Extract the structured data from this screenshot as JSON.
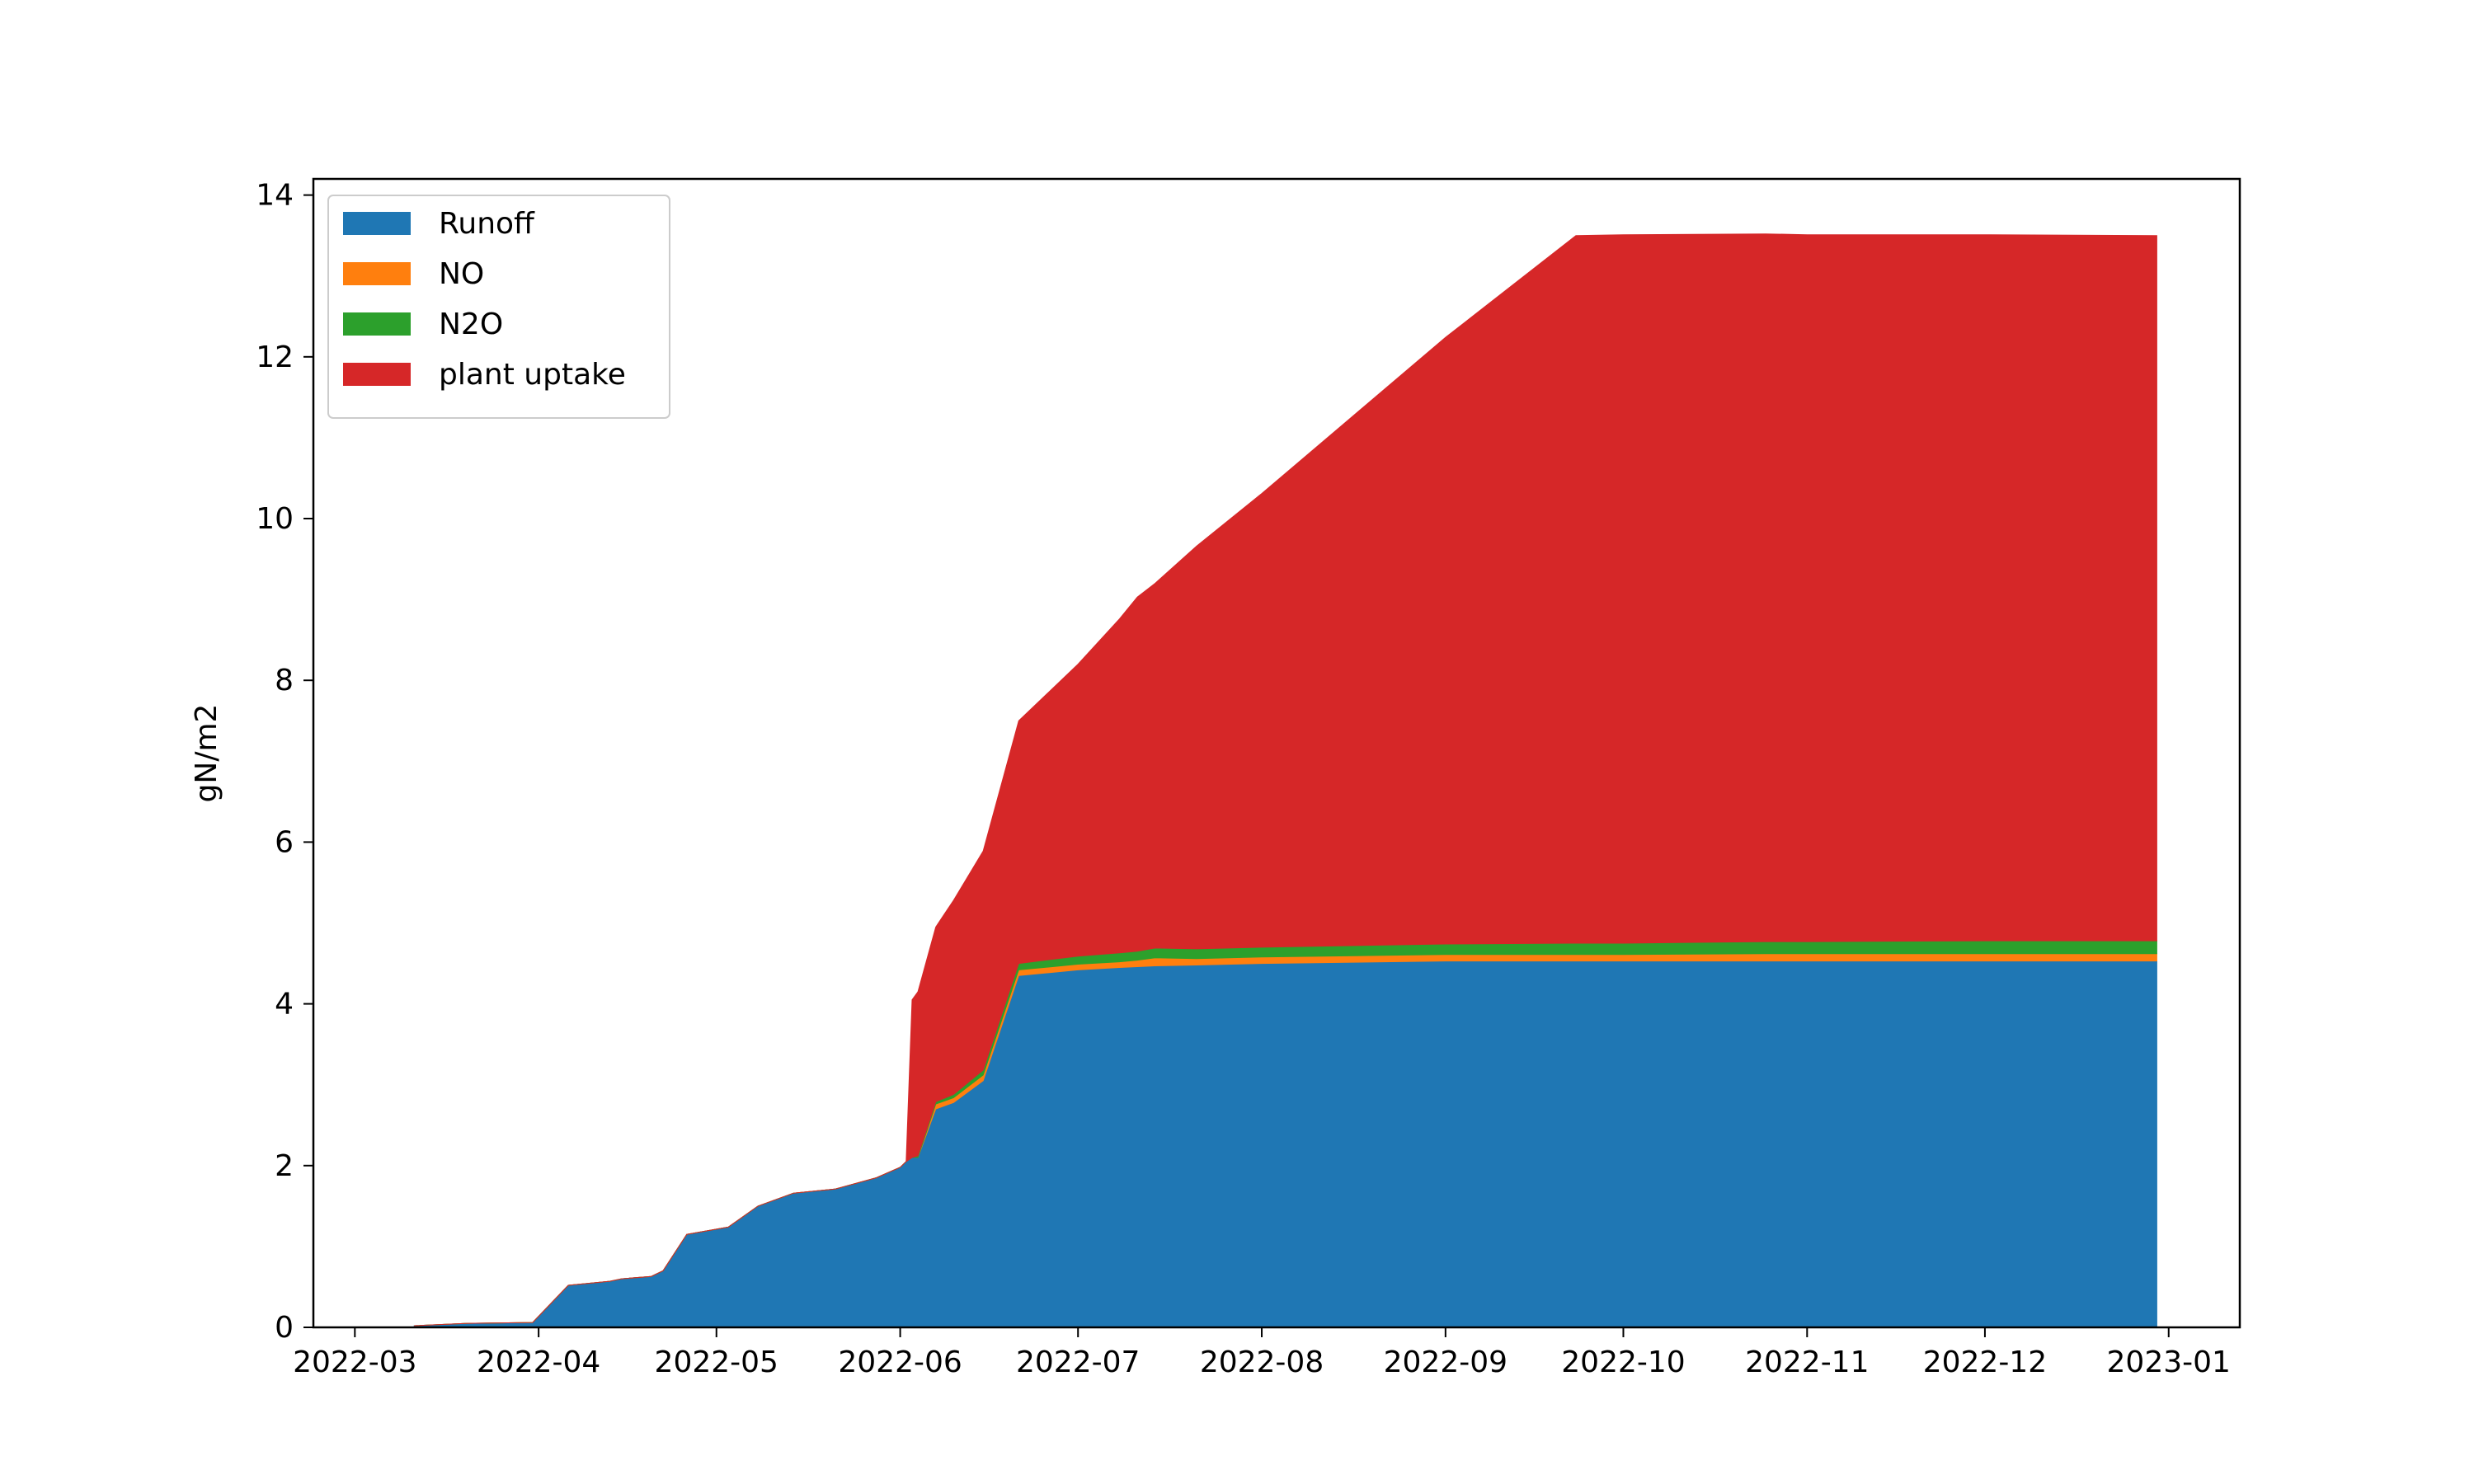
{
  "chart_data": {
    "type": "area",
    "stacked": true,
    "title": "",
    "xlabel": "",
    "ylabel": "gN/m2",
    "xlim": [
      "2022-02-22",
      "2023-01-13"
    ],
    "ylim": [
      0,
      14.2
    ],
    "x_ticks": [
      "2022-03",
      "2022-04",
      "2022-05",
      "2022-06",
      "2022-07",
      "2022-08",
      "2022-09",
      "2022-10",
      "2022-11",
      "2022-12",
      "2023-01"
    ],
    "y_ticks": [
      0,
      2,
      4,
      6,
      8,
      10,
      12,
      14
    ],
    "grid": false,
    "legend_position": "top-left",
    "x": [
      "2022-03-11",
      "2022-03-20",
      "2022-03-31",
      "2022-04-06",
      "2022-04-13",
      "2022-04-15",
      "2022-04-20",
      "2022-04-22",
      "2022-04-26",
      "2022-05-03",
      "2022-05-08",
      "2022-05-14",
      "2022-05-21",
      "2022-05-28",
      "2022-06-01",
      "2022-06-02",
      "2022-06-03",
      "2022-06-04",
      "2022-06-07",
      "2022-06-10",
      "2022-06-15",
      "2022-06-21",
      "2022-07-01",
      "2022-07-08",
      "2022-07-11",
      "2022-07-14",
      "2022-07-21",
      "2022-08-01",
      "2022-09-01",
      "2022-09-23",
      "2022-10-01",
      "2022-10-25",
      "2022-11-01",
      "2022-12-01",
      "2022-12-30"
    ],
    "series": [
      {
        "name": "Runoff",
        "color": "#1f77b4",
        "values": [
          0.02,
          0.05,
          0.06,
          0.52,
          0.57,
          0.6,
          0.63,
          0.7,
          1.15,
          1.24,
          1.5,
          1.66,
          1.71,
          1.85,
          1.98,
          2.05,
          2.1,
          2.1,
          2.7,
          2.78,
          3.05,
          4.35,
          4.42,
          4.45,
          4.46,
          4.47,
          4.48,
          4.5,
          4.53,
          4.53,
          4.53,
          4.53,
          4.53,
          4.53,
          4.53
        ]
      },
      {
        "name": "NO",
        "color": "#ff7f0e",
        "values": [
          0,
          0,
          0,
          0,
          0,
          0,
          0,
          0,
          0,
          0,
          0,
          0,
          0,
          0,
          0,
          0,
          0,
          0,
          0.06,
          0.06,
          0.07,
          0.07,
          0.07,
          0.07,
          0.08,
          0.1,
          0.08,
          0.08,
          0.08,
          0.08,
          0.08,
          0.09,
          0.09,
          0.09,
          0.09
        ]
      },
      {
        "name": "N2O",
        "color": "#2ca02c",
        "values": [
          0,
          0,
          0,
          0,
          0,
          0,
          0,
          0,
          0,
          0,
          0,
          0,
          0,
          0,
          0,
          0,
          0,
          0.02,
          0.03,
          0.04,
          0.06,
          0.08,
          0.1,
          0.11,
          0.11,
          0.12,
          0.12,
          0.12,
          0.13,
          0.14,
          0.14,
          0.15,
          0.15,
          0.16,
          0.16
        ]
      },
      {
        "name": "plant uptake",
        "color": "#d62728",
        "values": [
          0,
          0,
          0,
          0,
          0,
          0,
          0,
          0,
          0,
          0,
          0,
          0,
          0,
          0,
          0,
          0,
          1.95,
          2.03,
          2.16,
          2.4,
          2.71,
          3.0,
          3.61,
          4.13,
          4.38,
          4.51,
          4.98,
          5.61,
          7.5,
          8.75,
          8.76,
          8.75,
          8.74,
          8.73,
          8.72
        ]
      }
    ]
  }
}
